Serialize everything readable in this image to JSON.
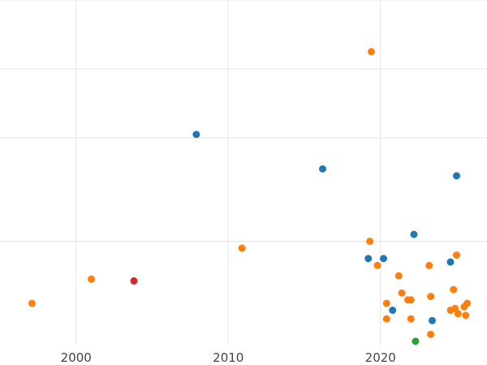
{
  "chart_data": {
    "type": "scatter",
    "title": "",
    "xlabel": "",
    "ylabel": "",
    "xlim": [
      1995,
      2027
    ],
    "ylim": [
      0,
      10
    ],
    "grid": true,
    "legend": "none",
    "x_ticks": [
      2000,
      2010,
      2020
    ],
    "x_tick_labels": [
      "2000",
      "2010",
      "2020"
    ],
    "y_gridlines": [
      3,
      6,
      8,
      10
    ],
    "series": [
      {
        "color": "#1f77b4",
        "points": [
          {
            "x": 2007.9,
            "y": 6.1
          },
          {
            "x": 2016.2,
            "y": 5.1
          },
          {
            "x": 2025.0,
            "y": 4.9
          },
          {
            "x": 2022.2,
            "y": 3.2
          },
          {
            "x": 2019.2,
            "y": 2.5
          },
          {
            "x": 2020.2,
            "y": 2.5
          },
          {
            "x": 2024.6,
            "y": 2.4
          },
          {
            "x": 2020.8,
            "y": 1.0
          },
          {
            "x": 2023.4,
            "y": 0.7
          }
        ]
      },
      {
        "color": "#ff7f0e",
        "points": [
          {
            "x": 2019.4,
            "y": 8.5
          },
          {
            "x": 2019.3,
            "y": 3.0
          },
          {
            "x": 2010.9,
            "y": 2.8
          },
          {
            "x": 2025.0,
            "y": 2.6
          },
          {
            "x": 2019.8,
            "y": 2.3
          },
          {
            "x": 2023.2,
            "y": 2.3
          },
          {
            "x": 2001.0,
            "y": 1.9
          },
          {
            "x": 2021.2,
            "y": 2.0
          },
          {
            "x": 2024.8,
            "y": 1.6
          },
          {
            "x": 2021.4,
            "y": 1.5
          },
          {
            "x": 2023.3,
            "y": 1.4
          },
          {
            "x": 1997.1,
            "y": 1.2
          },
          {
            "x": 2021.8,
            "y": 1.3
          },
          {
            "x": 2022.0,
            "y": 1.3
          },
          {
            "x": 2020.4,
            "y": 1.2
          },
          {
            "x": 2025.7,
            "y": 1.2
          },
          {
            "x": 2025.5,
            "y": 1.1
          },
          {
            "x": 2024.9,
            "y": 1.05
          },
          {
            "x": 2024.6,
            "y": 1.0
          },
          {
            "x": 2025.1,
            "y": 0.9
          },
          {
            "x": 2025.6,
            "y": 0.85
          },
          {
            "x": 2020.4,
            "y": 0.75
          },
          {
            "x": 2022.0,
            "y": 0.75
          },
          {
            "x": 2023.3,
            "y": 0.3
          }
        ]
      },
      {
        "color": "#d62728",
        "points": [
          {
            "x": 2003.8,
            "y": 1.85
          }
        ]
      },
      {
        "color": "#2ca02c",
        "points": [
          {
            "x": 2022.3,
            "y": 0.1
          }
        ]
      }
    ]
  }
}
